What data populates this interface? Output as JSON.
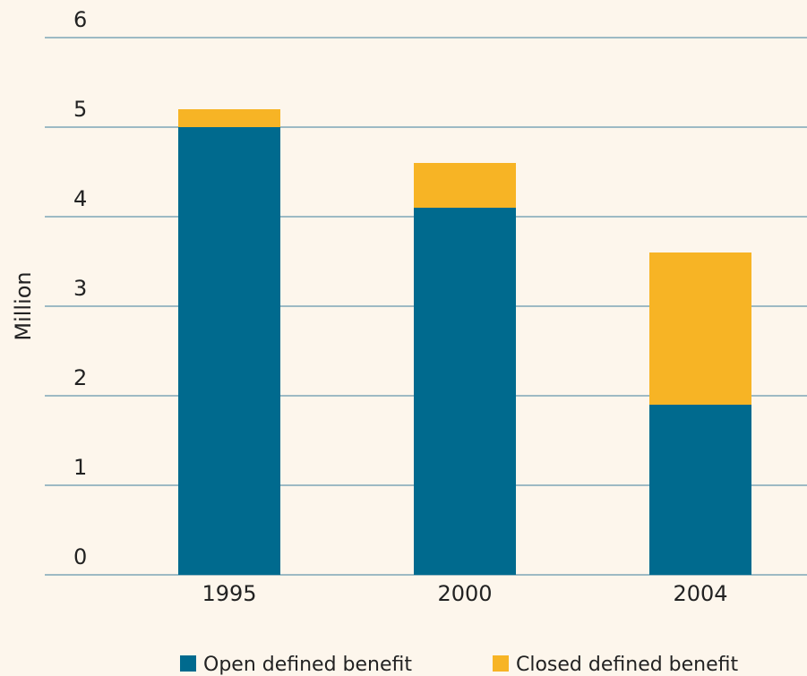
{
  "chart_data": {
    "type": "stacked_bar",
    "y_label": "Million",
    "categories": [
      "1995",
      "2000",
      "2004"
    ],
    "series": [
      {
        "name": "Open defined benefit",
        "color": "#006a8e",
        "values": [
          5.0,
          4.1,
          1.9
        ]
      },
      {
        "name": "Closed defined benefit",
        "color": "#f7b425",
        "values": [
          0.2,
          0.5,
          1.7
        ]
      }
    ],
    "ylim": [
      0,
      6
    ],
    "yticks": [
      0,
      1,
      2,
      3,
      4,
      5,
      6
    ],
    "grid": true,
    "legend": "bottom"
  }
}
